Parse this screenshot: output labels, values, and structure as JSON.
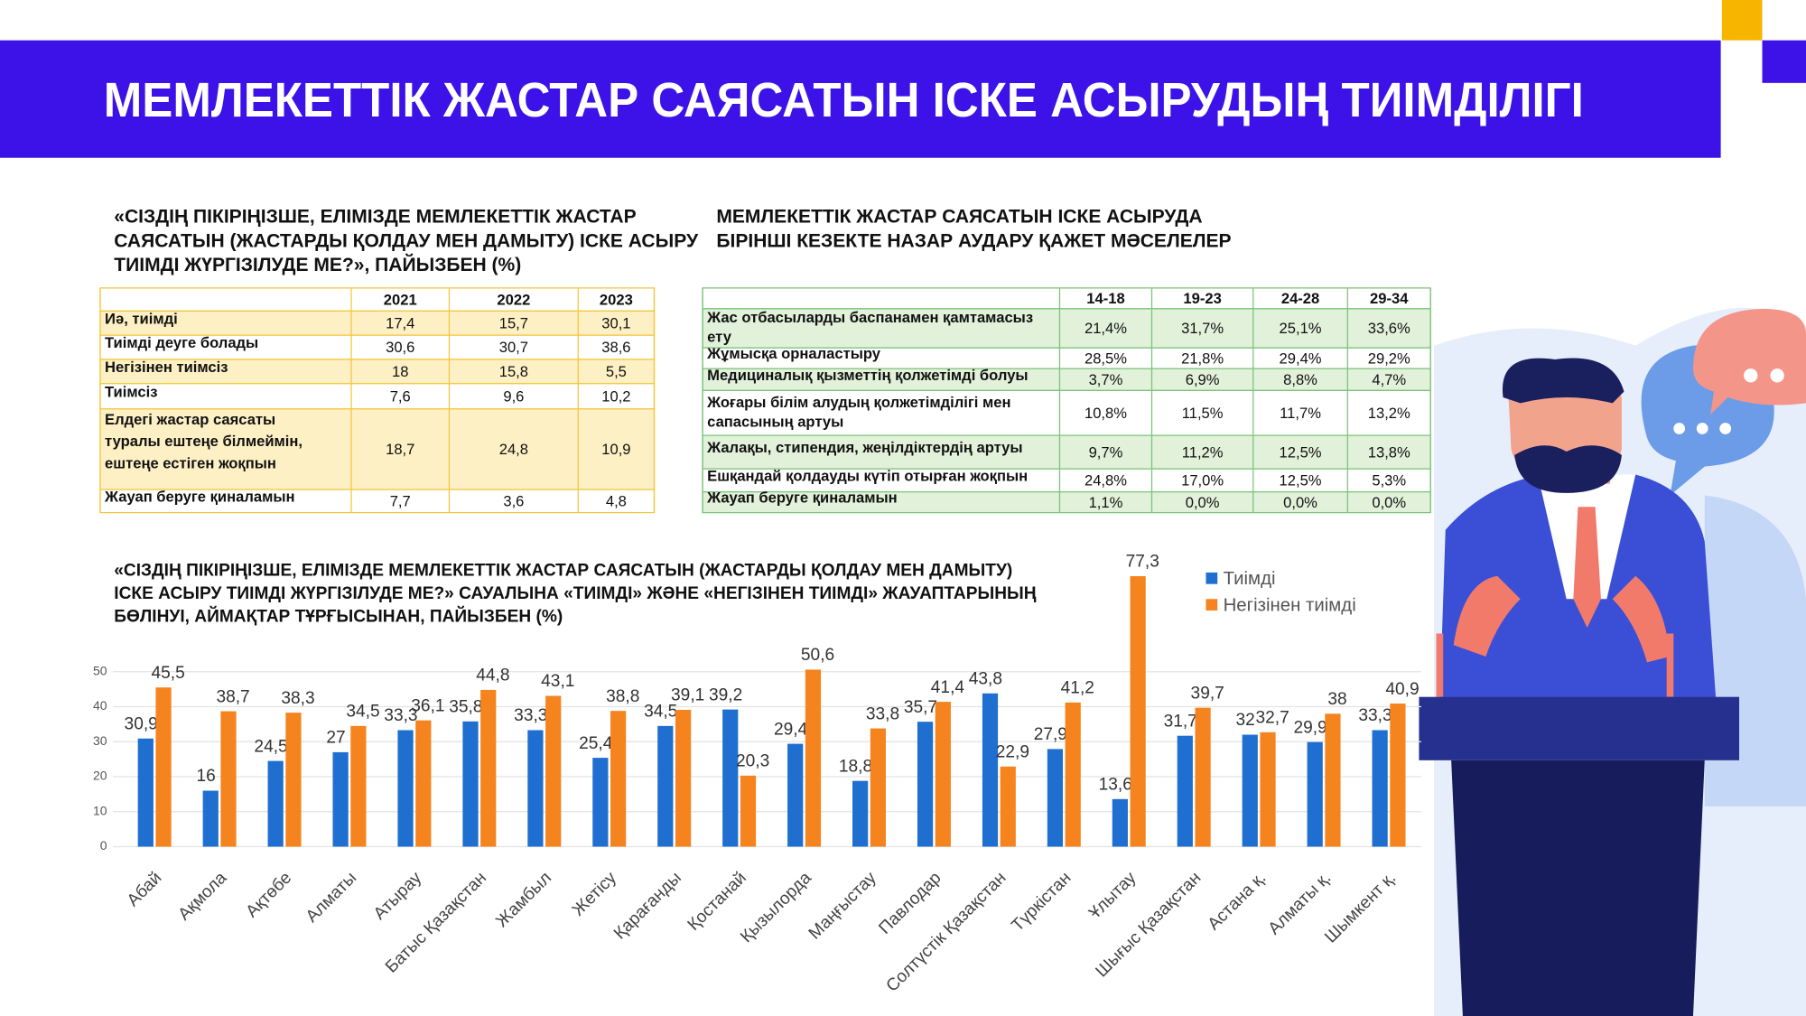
{
  "header": {
    "title": "МЕМЛЕКЕТТІК ЖАСТАР САЯСАТЫН ІСКЕ АСЫРУДЫҢ ТИІМДІЛІГІ"
  },
  "table1": {
    "title_lines": [
      "«СІЗДІҢ ПІКІРІҢІЗШЕ, ЕЛІМІЗДЕ МЕМЛЕКЕТТІК ЖАСТАР",
      "САЯСАТЫН (ЖАСТАРДЫ ҚОЛДАУ МЕН ДАМЫТУ) ІСКЕ АСЫРУ",
      "ТИІМДІ ЖҮРГІЗІЛУДЕ МЕ?», ПАЙЫЗБЕН (%)"
    ],
    "columns": [
      "2021",
      "2022",
      "2023"
    ],
    "rows": [
      {
        "label_lines": [
          "Иә, тиімді"
        ],
        "cells": [
          "17,4",
          "15,7",
          "30,1"
        ]
      },
      {
        "label_lines": [
          "Тиімді деуге болады"
        ],
        "cells": [
          "30,6",
          "30,7",
          "38,6"
        ]
      },
      {
        "label_lines": [
          "Негізінен тиімсіз"
        ],
        "cells": [
          "18",
          "15,8",
          "5,5"
        ]
      },
      {
        "label_lines": [
          "Тиімсіз"
        ],
        "cells": [
          "7,6",
          "9,6",
          "10,2"
        ]
      },
      {
        "label_lines": [
          "Елдегі жастар саясаты",
          "туралы ештеңе білмеймін,",
          "ештеңе естіген жоқпын"
        ],
        "cells": [
          "18,7",
          "24,8",
          "10,9"
        ]
      },
      {
        "label_lines": [
          "Жауап беруге қиналамын"
        ],
        "cells": [
          "7,7",
          "3,6",
          "4,8"
        ]
      }
    ]
  },
  "table2": {
    "title_lines": [
      "МЕМЛЕКЕТТІК ЖАСТАР САЯСАТЫН ІСКЕ АСЫРУДА",
      "БІРІНШІ КЕЗЕКТЕ НАЗАР АУДАРУ ҚАЖЕТ МӘСЕЛЕЛЕР"
    ],
    "columns": [
      "14-18",
      "19-23",
      "24-28",
      "29-34"
    ],
    "rows": [
      {
        "label_lines": [
          "Жас отбасыларды  баспанамен қамтамасыз",
          "ету"
        ],
        "cells": [
          "21,4%",
          "31,7%",
          "25,1%",
          "33,6%"
        ]
      },
      {
        "label_lines": [
          "Жұмысқа орналастыру"
        ],
        "cells": [
          "28,5%",
          "21,8%",
          "29,4%",
          "29,2%"
        ]
      },
      {
        "label_lines": [
          "Медициналық қызметтің қолжетімді болуы"
        ],
        "cells": [
          "3,7%",
          "6,9%",
          "8,8%",
          "4,7%"
        ]
      },
      {
        "label_lines": [
          "Жоғары білім алудың қолжетімділігі мен",
          "сапасының артуы"
        ],
        "cells": [
          "10,8%",
          "11,5%",
          "11,7%",
          "13,2%"
        ]
      },
      {
        "label_lines": [
          "Жалақы, стипендия, жеңілдіктердің артуы"
        ],
        "cells": [
          "9,7%",
          "11,2%",
          "12,5%",
          "13,8%"
        ]
      },
      {
        "label_lines": [
          "Ешқандай қолдауды күтіп отырған жоқпын"
        ],
        "cells": [
          "24,8%",
          "17,0%",
          "12,5%",
          "5,3%"
        ]
      },
      {
        "label_lines": [
          "Жауап беруге қиналамын"
        ],
        "cells": [
          "1,1%",
          "0,0%",
          "0,0%",
          "0,0%"
        ]
      }
    ]
  },
  "chart_data": {
    "type": "bar",
    "title_lines": [
      "«СІЗДІҢ ПІКІРІҢІЗШЕ, ЕЛІМІЗДЕ МЕМЛЕКЕТТІК ЖАСТАР САЯСАТЫН (ЖАСТАРДЫ ҚОЛДАУ МЕН ДАМЫТУ)",
      "ІСКЕ АСЫРУ ТИІМДІ ЖҮРГІЗІЛУДЕ МЕ?» САУАЛЫНА «ТИІМДІ» ЖӘНЕ «НЕГІЗІНЕН ТИІМДІ» ЖАУАПТАРЫНЫҢ",
      "БӨЛІНУІ, АЙМАҚТАР ТҰРҒЫСЫНАН,  ПАЙЫЗБЕН (%)"
    ],
    "categories": [
      "Абай",
      "Ақмола",
      "Ақтөбе",
      "Алматы",
      "Атырау",
      "Батыс Қазақстан",
      "Жамбыл",
      "Жетісу",
      "Қарағанды",
      "Қостанай",
      "Қызылорда",
      "Маңғыстау",
      "Павлодар",
      "Солтүстік Қазақстан",
      "Түркістан",
      "Ұлытау",
      "Шығыс Қазақстан",
      "Астана қ.",
      "Алматы қ.",
      "Шымкент қ."
    ],
    "series": [
      {
        "name": "Тиімді",
        "color": "#1f6fd0",
        "values": [
          30.9,
          16,
          24.5,
          27,
          33.3,
          35.8,
          33.3,
          25.4,
          34.5,
          39.2,
          29.4,
          18.8,
          35.7,
          43.8,
          27.9,
          13.6,
          31.7,
          32,
          29.9,
          33.3
        ],
        "value_labels": [
          "30,9",
          "16",
          "24,5",
          "27",
          "33,3",
          "35,8",
          "33,3",
          "25,4",
          "34,5",
          "39,2",
          "29,4",
          "18,8",
          "35,7",
          "43,8",
          "27,9",
          "13,6",
          "31,7",
          "32",
          "29,9",
          "33,3"
        ]
      },
      {
        "name": "Негізінен тиімді",
        "color": "#f5841f",
        "values": [
          45.5,
          38.7,
          38.3,
          34.5,
          36.1,
          44.8,
          43.1,
          38.8,
          39.1,
          20.3,
          50.6,
          33.8,
          41.4,
          22.9,
          41.2,
          77.3,
          39.7,
          32.7,
          38,
          40.9
        ],
        "value_labels": [
          "45,5",
          "38,7",
          "38,3",
          "34,5",
          "36,1",
          "44,8",
          "43,1",
          "38,8",
          "39,1",
          "20,3",
          "50,6",
          "33,8",
          "41,4",
          "22,9",
          "41,2",
          "77,3",
          "39,7",
          "32,7",
          "38",
          "40,9"
        ]
      }
    ],
    "ylim": [
      0,
      80
    ],
    "yticks": [
      0,
      10,
      20,
      30,
      40,
      50
    ],
    "grid": true,
    "legend": "top-right"
  }
}
